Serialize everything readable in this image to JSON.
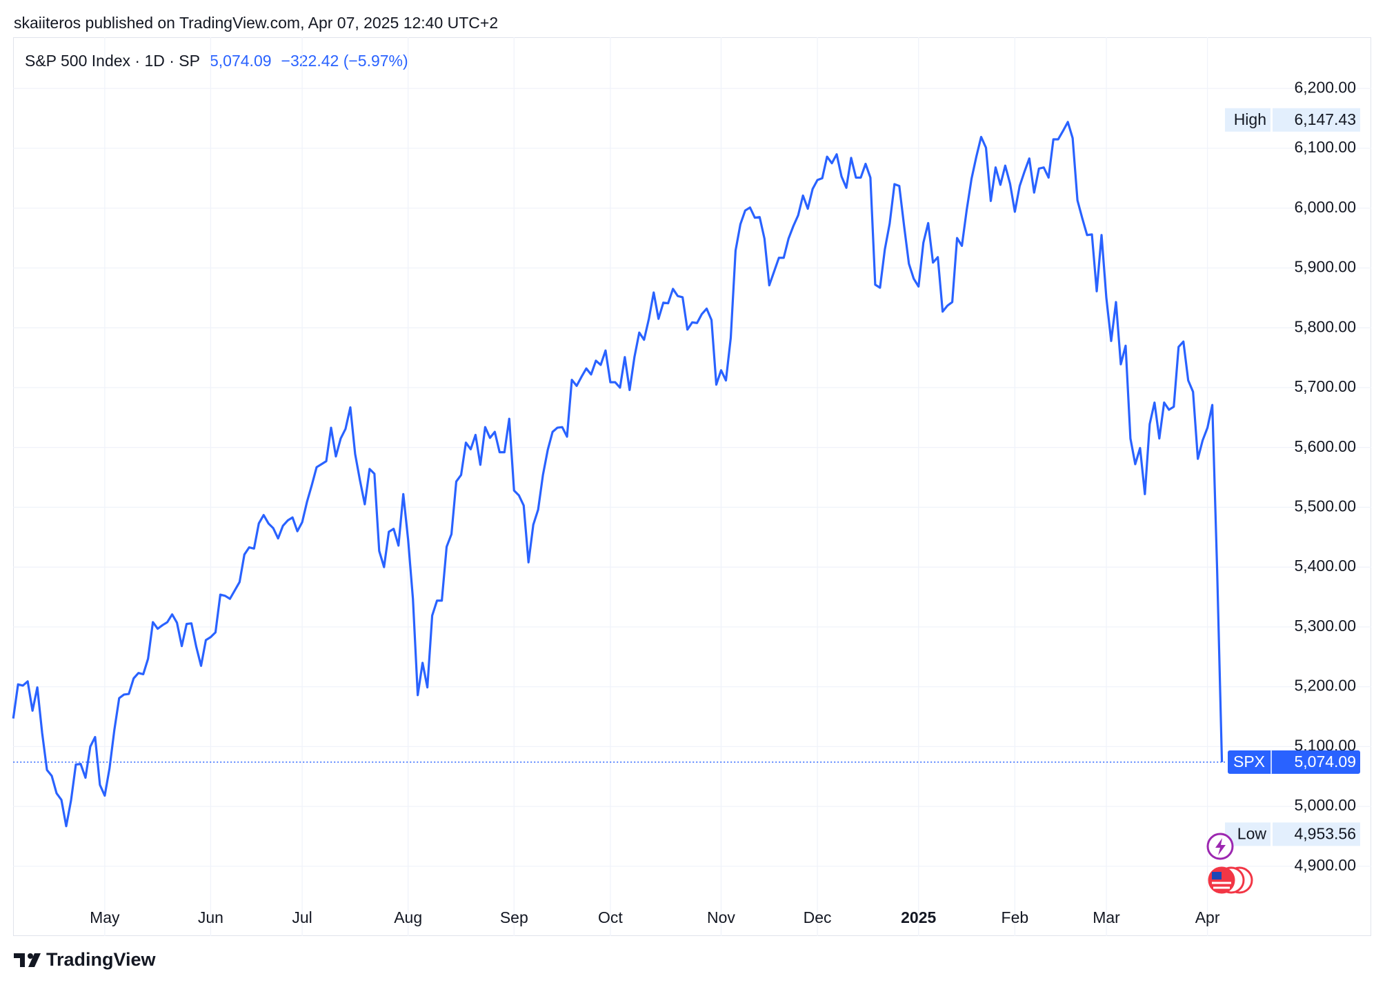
{
  "publisher": "skaiiteros published on TradingView.com, Apr 07, 2025 12:40 UTC+2",
  "footer": "TradingView",
  "header": {
    "symbol_text": "S&P 500 Index · 1D · SP",
    "price": "5,074.09",
    "change": "−322.42 (−5.97%)"
  },
  "chart_data": {
    "type": "line",
    "color": "#2962ff",
    "grid": true,
    "price_tag": "SPX",
    "values": [
      5147,
      5204,
      5202,
      5209,
      5160,
      5199,
      5123,
      5061,
      5051,
      5022,
      5011,
      4967,
      5010,
      5070,
      5071,
      5048,
      5100,
      5116,
      5036,
      5018,
      5064,
      5128,
      5181,
      5187,
      5188,
      5214,
      5223,
      5221,
      5247,
      5308,
      5297,
      5303,
      5308,
      5321,
      5307,
      5268,
      5305,
      5306,
      5267,
      5235,
      5278,
      5283,
      5291,
      5354,
      5352,
      5347,
      5361,
      5375,
      5421,
      5433,
      5431,
      5473,
      5487,
      5473,
      5465,
      5448,
      5469,
      5478,
      5483,
      5460,
      5475,
      5509,
      5537,
      5567,
      5572,
      5577,
      5633,
      5585,
      5615,
      5631,
      5667,
      5589,
      5545,
      5505,
      5564,
      5556,
      5427,
      5400,
      5459,
      5464,
      5436,
      5522,
      5446,
      5347,
      5186,
      5240,
      5199,
      5319,
      5344,
      5344,
      5434,
      5455,
      5543,
      5554,
      5608,
      5597,
      5621,
      5571,
      5634,
      5616,
      5626,
      5592,
      5592,
      5648,
      5528,
      5520,
      5503,
      5408,
      5471,
      5496,
      5554,
      5596,
      5626,
      5633,
      5634,
      5618,
      5713,
      5703,
      5718,
      5732,
      5722,
      5745,
      5738,
      5762,
      5709,
      5709,
      5700,
      5751,
      5696,
      5751,
      5792,
      5780,
      5815,
      5859,
      5815,
      5842,
      5841,
      5865,
      5853,
      5851,
      5797,
      5809,
      5808,
      5823,
      5832,
      5813,
      5705,
      5729,
      5712,
      5783,
      5929,
      5973,
      5996,
      6001,
      5984,
      5985,
      5949,
      5871,
      5894,
      5917,
      5917,
      5949,
      5970,
      5988,
      6021,
      5999,
      6032,
      6047,
      6050,
      6086,
      6075,
      6090,
      6053,
      6034,
      6084,
      6051,
      6051,
      6074,
      6051,
      5872,
      5867,
      5931,
      5974,
      6040,
      6037,
      5970,
      5907,
      5882,
      5869,
      5942,
      5975,
      5909,
      5918,
      5827,
      5837,
      5843,
      5950,
      5937,
      5997,
      6049,
      6086,
      6119,
      6101,
      6012,
      6068,
      6039,
      6071,
      6041,
      5994,
      6037,
      6061,
      6083,
      6026,
      6066,
      6068,
      6051,
      6115,
      6115,
      6129,
      6144,
      6117,
      6013,
      5983,
      5955,
      5956,
      5861,
      5955,
      5850,
      5778,
      5843,
      5739,
      5770,
      5615,
      5572,
      5599,
      5522,
      5639,
      5675,
      5615,
      5675,
      5663,
      5668,
      5768,
      5777,
      5712,
      5693,
      5581,
      5612,
      5633,
      5671,
      5397,
      5074.09
    ],
    "xlim": [
      0,
      282
    ],
    "xticks": [
      {
        "value": 19,
        "label": "May"
      },
      {
        "value": 41,
        "label": "Jun"
      },
      {
        "value": 60,
        "label": "Jul"
      },
      {
        "value": 82,
        "label": "Aug"
      },
      {
        "value": 104,
        "label": "Sep"
      },
      {
        "value": 124,
        "label": "Oct"
      },
      {
        "value": 147,
        "label": "Nov"
      },
      {
        "value": 167,
        "label": "Dec"
      },
      {
        "value": 188,
        "label": "2025"
      },
      {
        "value": 208,
        "label": "Feb"
      },
      {
        "value": 227,
        "label": "Mar"
      },
      {
        "value": 248,
        "label": "Apr"
      }
    ],
    "ylim": [
      4783.4,
      6285.6
    ],
    "yticks": [
      {
        "value": 4900,
        "label": "4,900.00"
      },
      {
        "value": 5000,
        "label": "5,000.00"
      },
      {
        "value": 5100,
        "label": "5,100.00"
      },
      {
        "value": 5200,
        "label": "5,200.00"
      },
      {
        "value": 5300,
        "label": "5,300.00"
      },
      {
        "value": 5400,
        "label": "5,400.00"
      },
      {
        "value": 5500,
        "label": "5,500.00"
      },
      {
        "value": 5600,
        "label": "5,600.00"
      },
      {
        "value": 5700,
        "label": "5,700.00"
      },
      {
        "value": 5800,
        "label": "5,800.00"
      },
      {
        "value": 5900,
        "label": "5,900.00"
      },
      {
        "value": 6000,
        "label": "6,000.00"
      },
      {
        "value": 6100,
        "label": "6,100.00"
      },
      {
        "value": 6200,
        "label": "6,200.00"
      }
    ],
    "annotations": [
      {
        "text": "High",
        "value": 6147.43,
        "label": "6,147.43"
      },
      {
        "text": "Low",
        "value": 4953.56,
        "label": "4,953.56"
      }
    ]
  }
}
